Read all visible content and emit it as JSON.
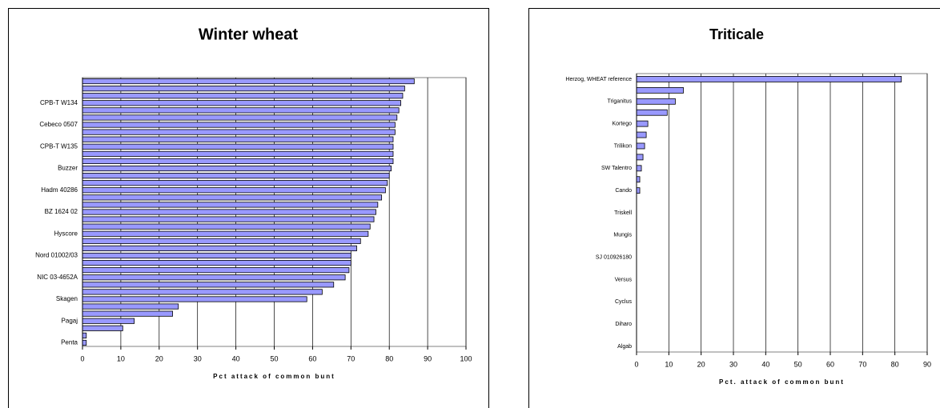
{
  "chart_data": [
    {
      "type": "hbar",
      "title": "Winter wheat",
      "x_label": "Pct attack of common bunt",
      "categories": [
        null,
        null,
        null,
        "CPB-T W134",
        null,
        null,
        "Cebeco 0507",
        null,
        null,
        "CPB-T W135",
        null,
        null,
        "Buzzer",
        null,
        null,
        "Hadm 40286",
        null,
        null,
        "BZ 1624 02",
        null,
        null,
        "Hyscore",
        null,
        null,
        "Nord 01002/03",
        null,
        null,
        "NIC 03-4652A",
        null,
        null,
        "Skagen",
        null,
        null,
        "Pagaj",
        null,
        null,
        "Penta"
      ],
      "values": [
        86.5,
        84,
        83.5,
        83,
        82.5,
        82,
        81.5,
        81.5,
        81,
        81,
        81,
        81,
        80.5,
        80,
        79.5,
        79,
        78,
        77,
        76.5,
        76,
        75,
        74.5,
        72.5,
        71.5,
        70,
        70,
        69.5,
        68.5,
        65.5,
        62.5,
        58.5,
        25,
        23.5,
        13.5,
        10.5,
        1,
        1
      ],
      "color": "#9999ff",
      "xlim": [
        0,
        100
      ],
      "xticks": [
        0,
        10,
        20,
        30,
        40,
        50,
        60,
        70,
        80,
        90,
        100
      ],
      "grid": true
    },
    {
      "type": "hbar",
      "title": "Triticale",
      "x_label": "Pct. attack of common bunt",
      "categories": [
        "Herzog, WHEAT reference",
        null,
        "Triganitus",
        null,
        "Kortego",
        null,
        "Trilikon",
        null,
        "SW Talentro",
        null,
        "Cando",
        null,
        "Triskell",
        null,
        "Mungis",
        null,
        "SJ 010926180",
        null,
        "Versus",
        null,
        "Cyclus",
        null,
        "Diharo",
        null,
        "Algab"
      ],
      "values": [
        82,
        14.5,
        12,
        9.5,
        3.5,
        3,
        2.5,
        2,
        1.5,
        1,
        1,
        0,
        0,
        0,
        0,
        0,
        0,
        0,
        0,
        0,
        0,
        0,
        0,
        0,
        0
      ],
      "color": "#9999ff",
      "xlim": [
        0,
        90
      ],
      "xticks": [
        0,
        10,
        20,
        30,
        40,
        50,
        60,
        70,
        80,
        90
      ],
      "grid": true
    }
  ]
}
